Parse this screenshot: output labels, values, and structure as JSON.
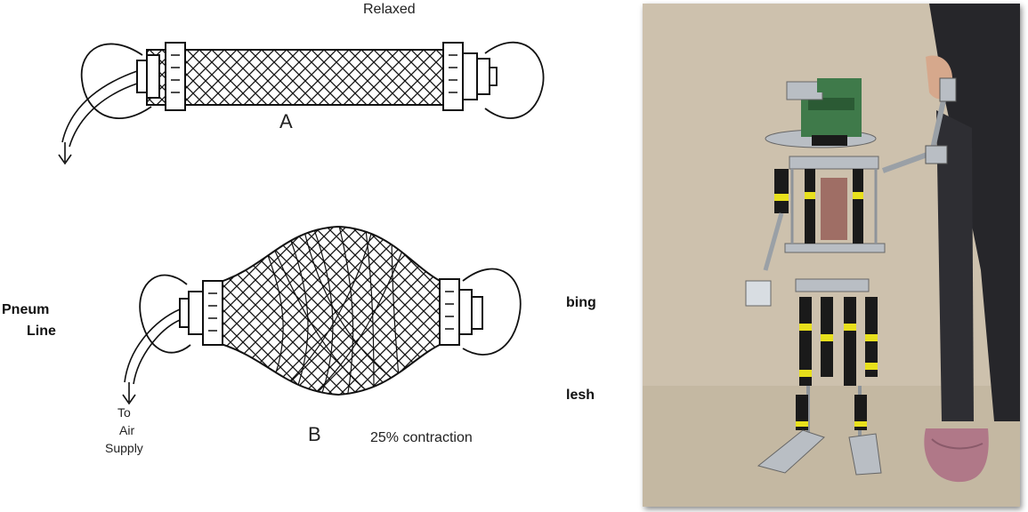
{
  "diagram": {
    "state_a_caption": "Relaxed",
    "state_a_letter": "A",
    "state_b_letter": "B",
    "state_b_caption": "25% contraction",
    "left_label_line1": "Pneum",
    "left_label_line2": "Line",
    "right_label_1": "bing",
    "right_label_2": "lesh",
    "air_label_line1": "To",
    "air_label_line2": "Air",
    "air_label_line3": "Supply"
  },
  "colors": {
    "background": "#ffffff",
    "ink": "#111111",
    "photo_backdrop": "#cdc1ad",
    "robot_metal": "#b9bec4",
    "actuator_black": "#1a1a1a",
    "actuator_yellow": "#e8e01c",
    "sock_pink": "#b07888"
  },
  "photo": {
    "subject": "humanoid-robot-with-pneumatic-muscles"
  }
}
